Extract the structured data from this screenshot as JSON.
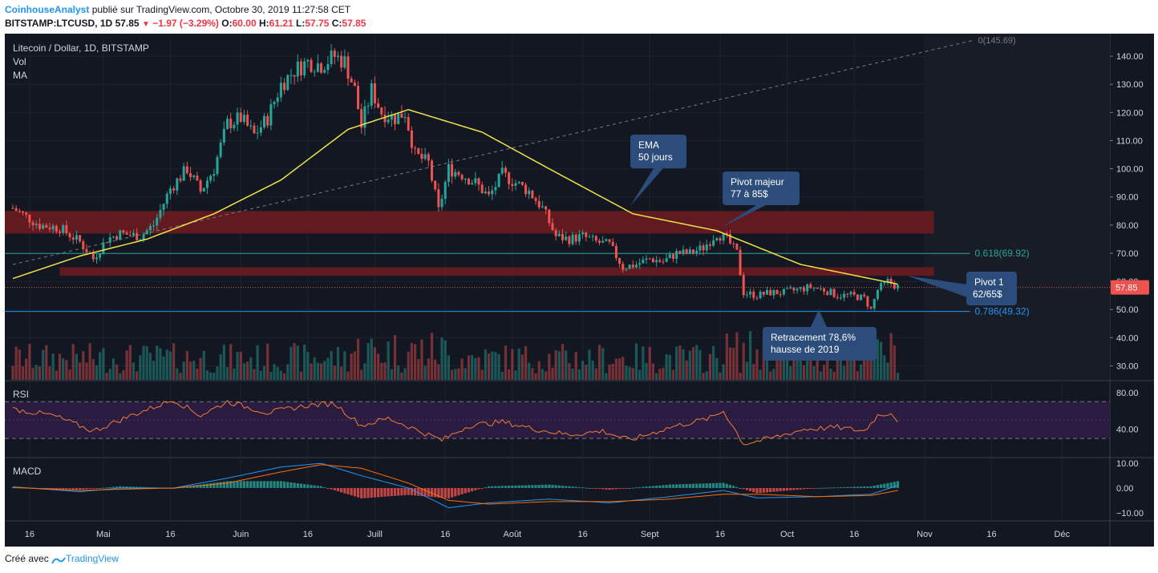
{
  "header": {
    "publisher": "CoinhouseAnalyst",
    "published_text": "publié sur TradingView.com, Octobre 30, 2019 11:27:58 CET",
    "symbol": "BITSTAMP:LTCUSD, 1D",
    "last": "57.85",
    "change": "−1.97 (−3.29%)",
    "o_label": "O:",
    "o": "60.00",
    "h_label": "H:",
    "h": "61.21",
    "l_label": "L:",
    "l": "57.75",
    "c_label": "C:",
    "c": "57.85"
  },
  "legend": {
    "title": "Litecoin / Dollar, 1D, BITSTAMP",
    "vol": "Vol",
    "ma": "MA"
  },
  "panes": {
    "rsi": "RSI",
    "macd": "MACD"
  },
  "footer": {
    "created_with": "Créé avec",
    "brand": "TradingView"
  },
  "colors": {
    "bg": "#131722",
    "up": "#26a69a",
    "down": "#ef5350",
    "ema": "#f0e448",
    "zone": "#6e1b20",
    "fib618": "#26a69a",
    "fib786": "#2196f3",
    "price_tag": "#ef5350",
    "callout": "#2c4c7c",
    "rsi_line": "#f57c33",
    "rsi_band": "#2a1c40",
    "macd_line": "#2196f3",
    "signal_line": "#ff6d00"
  },
  "chart_data": {
    "type": "candlestick",
    "price_axis": {
      "min": 25,
      "max": 148,
      "ticks": [
        "140.00",
        "130.00",
        "120.00",
        "110.00",
        "100.00",
        "90.00",
        "80.00",
        "70.00",
        "60.00",
        "50.00",
        "40.00",
        "30.00"
      ]
    },
    "x_axis": {
      "labels": [
        "16",
        "Mai",
        "16",
        "Juin",
        "16",
        "Juill",
        "16",
        "Août",
        "16",
        "Sept",
        "16",
        "Oct",
        "16",
        "Nov",
        "16",
        "Déc"
      ]
    },
    "last_price": "57.85",
    "ema_label": "EMA 50 jours",
    "price_anchors": [
      {
        "day": 0,
        "price": 86
      },
      {
        "day": 8,
        "price": 80
      },
      {
        "day": 14,
        "price": 79
      },
      {
        "day": 20,
        "price": 74
      },
      {
        "day": 24,
        "price": 68
      },
      {
        "day": 28,
        "price": 75
      },
      {
        "day": 32,
        "price": 77
      },
      {
        "day": 38,
        "price": 76
      },
      {
        "day": 42,
        "price": 80
      },
      {
        "day": 47,
        "price": 93
      },
      {
        "day": 52,
        "price": 100
      },
      {
        "day": 56,
        "price": 92
      },
      {
        "day": 60,
        "price": 100
      },
      {
        "day": 64,
        "price": 116
      },
      {
        "day": 68,
        "price": 118
      },
      {
        "day": 72,
        "price": 112
      },
      {
        "day": 76,
        "price": 118
      },
      {
        "day": 80,
        "price": 130
      },
      {
        "day": 84,
        "price": 135
      },
      {
        "day": 88,
        "price": 138
      },
      {
        "day": 92,
        "price": 137
      },
      {
        "day": 96,
        "price": 140
      },
      {
        "day": 99,
        "price": 138
      },
      {
        "day": 102,
        "price": 128
      },
      {
        "day": 104,
        "price": 115
      },
      {
        "day": 107,
        "price": 128
      },
      {
        "day": 110,
        "price": 120
      },
      {
        "day": 114,
        "price": 118
      },
      {
        "day": 117,
        "price": 120
      },
      {
        "day": 120,
        "price": 105
      },
      {
        "day": 124,
        "price": 102
      },
      {
        "day": 127,
        "price": 85
      },
      {
        "day": 130,
        "price": 100
      },
      {
        "day": 134,
        "price": 98
      },
      {
        "day": 138,
        "price": 95
      },
      {
        "day": 142,
        "price": 90
      },
      {
        "day": 146,
        "price": 98
      },
      {
        "day": 150,
        "price": 95
      },
      {
        "day": 154,
        "price": 92
      },
      {
        "day": 158,
        "price": 86
      },
      {
        "day": 162,
        "price": 76
      },
      {
        "day": 166,
        "price": 75
      },
      {
        "day": 170,
        "price": 76
      },
      {
        "day": 174,
        "price": 74
      },
      {
        "day": 178,
        "price": 73
      },
      {
        "day": 182,
        "price": 65
      },
      {
        "day": 186,
        "price": 66
      },
      {
        "day": 190,
        "price": 68
      },
      {
        "day": 194,
        "price": 67
      },
      {
        "day": 198,
        "price": 70
      },
      {
        "day": 202,
        "price": 70
      },
      {
        "day": 206,
        "price": 72
      },
      {
        "day": 210,
        "price": 77
      },
      {
        "day": 213,
        "price": 75
      },
      {
        "day": 216,
        "price": 70
      },
      {
        "day": 218,
        "price": 56
      },
      {
        "day": 222,
        "price": 55
      },
      {
        "day": 226,
        "price": 56
      },
      {
        "day": 230,
        "price": 56
      },
      {
        "day": 234,
        "price": 57
      },
      {
        "day": 238,
        "price": 58
      },
      {
        "day": 242,
        "price": 57
      },
      {
        "day": 246,
        "price": 55
      },
      {
        "day": 250,
        "price": 55
      },
      {
        "day": 254,
        "price": 54
      },
      {
        "day": 256,
        "price": 50
      },
      {
        "day": 258,
        "price": 57
      },
      {
        "day": 261,
        "price": 60
      },
      {
        "day": 264,
        "price": 58
      }
    ],
    "ema_anchors": [
      {
        "day": 0,
        "price": 61
      },
      {
        "day": 20,
        "price": 69
      },
      {
        "day": 40,
        "price": 75
      },
      {
        "day": 60,
        "price": 84
      },
      {
        "day": 80,
        "price": 96
      },
      {
        "day": 100,
        "price": 114
      },
      {
        "day": 118,
        "price": 121
      },
      {
        "day": 140,
        "price": 113
      },
      {
        "day": 160,
        "price": 100
      },
      {
        "day": 185,
        "price": 84
      },
      {
        "day": 210,
        "price": 78
      },
      {
        "day": 235,
        "price": 66
      },
      {
        "day": 264,
        "price": 59
      }
    ],
    "zones": [
      {
        "name": "Pivot majeur",
        "low": 77,
        "high": 85
      },
      {
        "name": "Pivot 1",
        "low": 62,
        "high": 65
      }
    ],
    "fib_levels": [
      {
        "label": "0(145.69)",
        "value": 145.69
      },
      {
        "label": "0.618(69.92)",
        "value": 69.92
      },
      {
        "label": "0.786(49.32)",
        "value": 49.32
      }
    ],
    "annotations": [
      {
        "line1": "EMA",
        "line2": "50 jours"
      },
      {
        "line1": "Pivot majeur",
        "line2": "77 à 85$"
      },
      {
        "line1": "Pivot 1",
        "line2": "62/65$"
      },
      {
        "line1": "Retracement 78,6%",
        "line2": "hausse de 2019"
      }
    ],
    "rsi": {
      "ticks": [
        "80.00",
        "40.00"
      ],
      "overbought": 70,
      "oversold": 30,
      "anchors": [
        {
          "day": 0,
          "value": 62
        },
        {
          "day": 12,
          "value": 55
        },
        {
          "day": 24,
          "value": 38
        },
        {
          "day": 36,
          "value": 56
        },
        {
          "day": 48,
          "value": 72
        },
        {
          "day": 56,
          "value": 55
        },
        {
          "day": 64,
          "value": 70
        },
        {
          "day": 76,
          "value": 58
        },
        {
          "day": 88,
          "value": 66
        },
        {
          "day": 96,
          "value": 68
        },
        {
          "day": 104,
          "value": 44
        },
        {
          "day": 112,
          "value": 52
        },
        {
          "day": 120,
          "value": 40
        },
        {
          "day": 128,
          "value": 28
        },
        {
          "day": 136,
          "value": 44
        },
        {
          "day": 146,
          "value": 48
        },
        {
          "day": 156,
          "value": 40
        },
        {
          "day": 166,
          "value": 34
        },
        {
          "day": 176,
          "value": 38
        },
        {
          "day": 184,
          "value": 28
        },
        {
          "day": 196,
          "value": 42
        },
        {
          "day": 208,
          "value": 52
        },
        {
          "day": 212,
          "value": 60
        },
        {
          "day": 218,
          "value": 24
        },
        {
          "day": 226,
          "value": 30
        },
        {
          "day": 236,
          "value": 40
        },
        {
          "day": 246,
          "value": 42
        },
        {
          "day": 254,
          "value": 38
        },
        {
          "day": 258,
          "value": 55
        },
        {
          "day": 262,
          "value": 58
        },
        {
          "day": 264,
          "value": 50
        }
      ]
    },
    "macd": {
      "ticks": [
        "10.00",
        "0.00",
        "−10.00"
      ],
      "anchors": [
        {
          "day": 0,
          "macd": 0.5,
          "signal": 0.3
        },
        {
          "day": 20,
          "macd": -1.5,
          "signal": -1
        },
        {
          "day": 32,
          "macd": 0,
          "signal": -0.5
        },
        {
          "day": 48,
          "macd": 0,
          "signal": 0
        },
        {
          "day": 64,
          "macd": 4,
          "signal": 2
        },
        {
          "day": 80,
          "macd": 8.5,
          "signal": 6.5
        },
        {
          "day": 92,
          "macd": 10,
          "signal": 9.5
        },
        {
          "day": 104,
          "macd": 5,
          "signal": 8
        },
        {
          "day": 118,
          "macd": 0,
          "signal": 2
        },
        {
          "day": 130,
          "macd": -8,
          "signal": -5
        },
        {
          "day": 142,
          "macd": -6,
          "signal": -6.5
        },
        {
          "day": 160,
          "macd": -4.5,
          "signal": -5.5
        },
        {
          "day": 178,
          "macd": -6,
          "signal": -5.5
        },
        {
          "day": 196,
          "macd": -3.5,
          "signal": -4.5
        },
        {
          "day": 212,
          "macd": -1,
          "signal": -2.5
        },
        {
          "day": 222,
          "macd": -4,
          "signal": -2.5
        },
        {
          "day": 240,
          "macd": -3.5,
          "signal": -3.5
        },
        {
          "day": 256,
          "macd": -2.5,
          "signal": -3
        },
        {
          "day": 264,
          "macd": 1,
          "signal": -1
        }
      ]
    }
  }
}
